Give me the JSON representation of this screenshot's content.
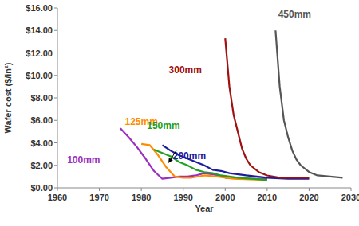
{
  "chart_data": {
    "type": "line",
    "x_label": "Year",
    "y_label": "Wafer cost ($/in²)",
    "xlim": [
      1960,
      2030
    ],
    "xticks": [
      1960,
      1970,
      1980,
      1990,
      2000,
      2010,
      2020,
      2030
    ],
    "ylim": [
      0,
      16
    ],
    "yticks": [
      {
        "value": 0,
        "label": "$0.00"
      },
      {
        "value": 2,
        "label": "$2.00"
      },
      {
        "value": 4,
        "label": "$4.00"
      },
      {
        "value": 6,
        "label": "$6.00"
      },
      {
        "value": 8,
        "label": "$8.00"
      },
      {
        "value": 10,
        "label": "$10.00"
      },
      {
        "value": 12,
        "label": "$12.00"
      },
      {
        "value": 14,
        "label": "$14.00"
      },
      {
        "value": 16,
        "label": "$16.00"
      }
    ],
    "grid": false,
    "series": [
      {
        "name": "100mm",
        "color": "#9b30c0",
        "x": [
          1975,
          1977,
          1979,
          1981,
          1983,
          1985,
          1987,
          1989,
          1991,
          1993,
          1995,
          1997,
          2000,
          2005,
          2010
        ],
        "values": [
          5.3,
          4.5,
          3.6,
          2.6,
          1.5,
          0.8,
          0.9,
          1.0,
          1.0,
          1.1,
          1.3,
          1.2,
          0.9,
          0.8,
          0.8
        ]
      },
      {
        "name": "125mm",
        "color": "#ff8c00",
        "x": [
          1980,
          1982,
          1984,
          1986,
          1988,
          1990,
          1992,
          1995,
          1998,
          2002,
          2010
        ],
        "values": [
          3.9,
          3.8,
          2.9,
          1.8,
          1.0,
          0.9,
          0.9,
          1.1,
          1.0,
          0.8,
          0.7
        ]
      },
      {
        "name": "150mm",
        "color": "#22a022",
        "x": [
          1983,
          1985,
          1987,
          1989,
          1991,
          1993,
          1995,
          1997,
          1999,
          2003,
          2010
        ],
        "values": [
          3.4,
          3.1,
          2.8,
          2.3,
          2.0,
          1.6,
          1.4,
          1.3,
          1.1,
          0.9,
          0.7
        ]
      },
      {
        "name": "200mm",
        "color": "#1c1c9c",
        "x": [
          1985,
          1987,
          1989,
          1991,
          1993,
          1995,
          1997,
          1999,
          2001,
          2005,
          2010,
          2015,
          2020
        ],
        "values": [
          3.8,
          3.3,
          2.9,
          2.6,
          2.3,
          2.0,
          1.6,
          1.5,
          1.3,
          1.1,
          0.9,
          0.8,
          0.8
        ]
      },
      {
        "name": "300mm",
        "color": "#a01010",
        "x": [
          2000,
          2001,
          2002,
          2003,
          2004,
          2005,
          2006,
          2008,
          2010,
          2013,
          2020
        ],
        "values": [
          13.3,
          9.0,
          6.5,
          5.0,
          3.5,
          2.6,
          2.0,
          1.4,
          1.1,
          0.9,
          0.9
        ]
      },
      {
        "name": "450mm",
        "color": "#555555",
        "x": [
          2012,
          2013,
          2014,
          2015,
          2016,
          2017,
          2018,
          2020,
          2022,
          2025,
          2028
        ],
        "values": [
          14.0,
          9.0,
          6.0,
          4.5,
          3.3,
          2.5,
          2.0,
          1.4,
          1.1,
          1.0,
          0.9
        ]
      }
    ]
  }
}
